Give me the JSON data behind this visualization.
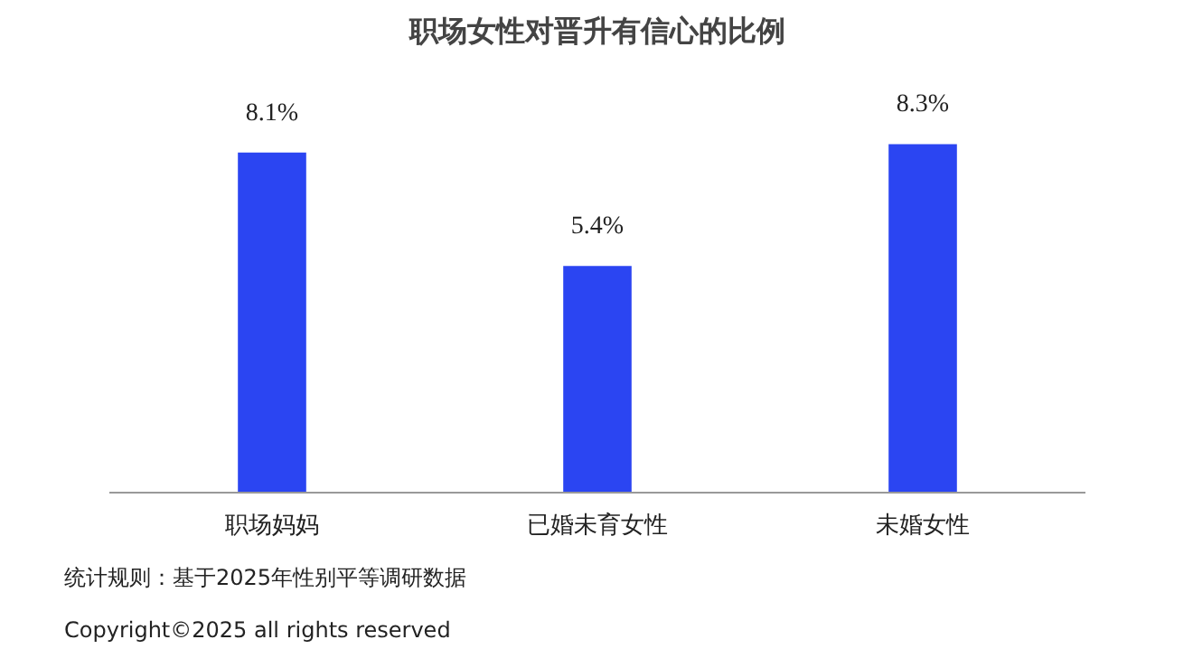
{
  "chart_data": {
    "type": "bar",
    "title": "职场女性对晋升有信心的比例",
    "categories": [
      "职场妈妈",
      "已婚未育女性",
      "未婚女性"
    ],
    "values": [
      8.1,
      5.4,
      8.3
    ],
    "value_labels": [
      "8.1%",
      "5.4%",
      "8.3%"
    ],
    "color": "#2b45f2",
    "grid": false,
    "annotations": [
      "统计规则：基于2025年性别平等调研数据",
      "Copyright©2025 all rights reserved"
    ]
  }
}
